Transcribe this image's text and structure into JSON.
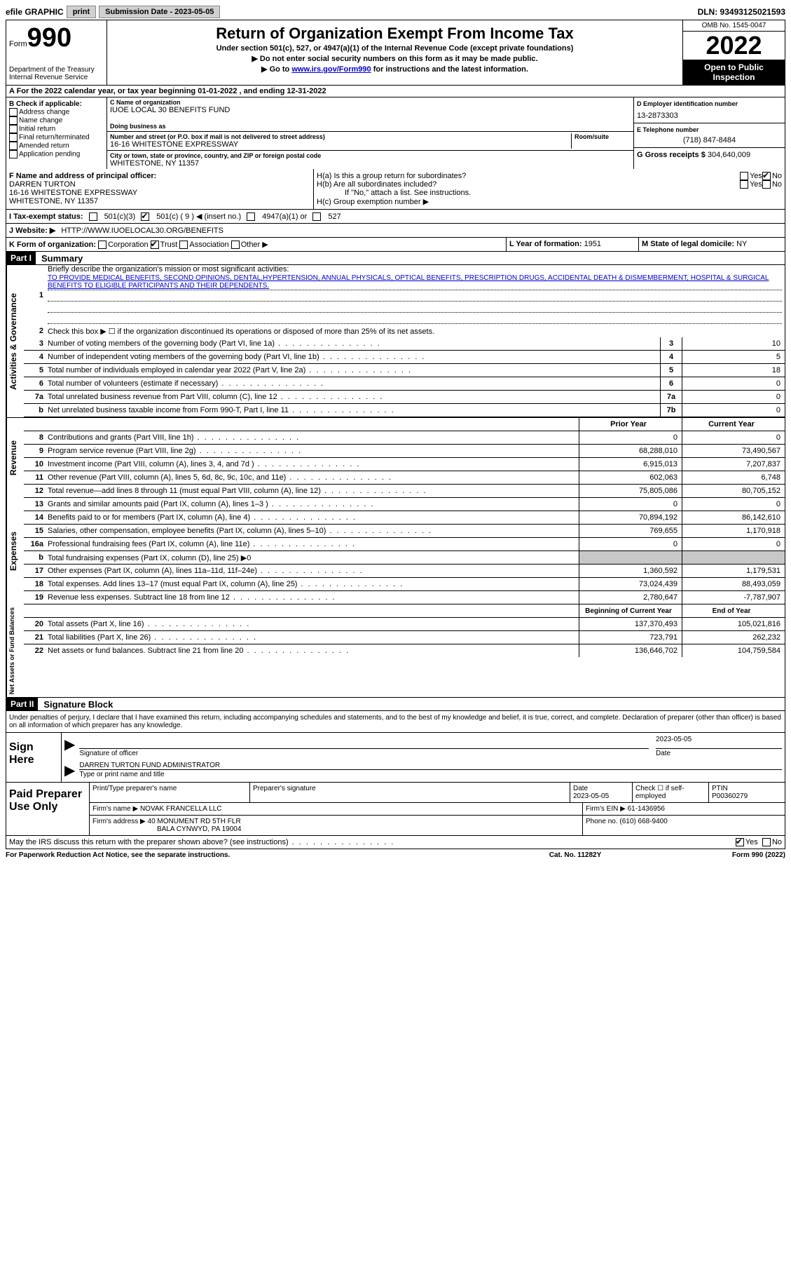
{
  "top": {
    "efile": "efile GRAPHIC",
    "print": "print",
    "submission_label": "Submission Date - 2023-05-05",
    "dln": "DLN: 93493125021593"
  },
  "header": {
    "form_word": "Form",
    "form_number": "990",
    "dept": "Department of the Treasury",
    "irs": "Internal Revenue Service",
    "title": "Return of Organization Exempt From Income Tax",
    "sub": "Under section 501(c), 527, or 4947(a)(1) of the Internal Revenue Code (except private foundations)",
    "line2": "▶ Do not enter social security numbers on this form as it may be made public.",
    "line3_pre": "▶ Go to ",
    "line3_link": "www.irs.gov/Form990",
    "line3_post": " for instructions and the latest information.",
    "omb": "OMB No. 1545-0047",
    "year": "2022",
    "inspection": "Open to Public Inspection"
  },
  "rowA": "A For the 2022 calendar year, or tax year beginning 01-01-2022   , and ending 12-31-2022",
  "b": {
    "label": "B Check if applicable:",
    "opts": [
      "Address change",
      "Name change",
      "Initial return",
      "Final return/terminated",
      "Amended return",
      "Application pending"
    ]
  },
  "c": {
    "name_label": "C Name of organization",
    "name": "IUOE LOCAL 30 BENEFITS FUND",
    "dba_label": "Doing business as",
    "street_label": "Number and street (or P.O. box if mail is not delivered to street address)",
    "room_label": "Room/suite",
    "street": "16-16 WHITESTONE EXPRESSWAY",
    "city_label": "City or town, state or province, country, and ZIP or foreign postal code",
    "city": "WHITESTONE, NY  11357"
  },
  "d": {
    "ein_label": "D Employer identification number",
    "ein": "13-2873303",
    "phone_label": "E Telephone number",
    "phone": "(718) 847-8484",
    "gross_label": "G Gross receipts $",
    "gross": "304,640,009"
  },
  "f": {
    "label": "F Name and address of principal officer:",
    "name": "DARREN TURTON",
    "street": "16-16 WHITESTONE EXPRESSWAY",
    "city": "WHITESTONE, NY  11357"
  },
  "h": {
    "a": "H(a)  Is this a group return for subordinates?",
    "b": "H(b)  Are all subordinates included?",
    "b_note": "If \"No,\" attach a list. See instructions.",
    "c": "H(c)  Group exemption number ▶",
    "yes": "Yes",
    "no": "No"
  },
  "i": {
    "label": "I   Tax-exempt status:",
    "o1": "501(c)(3)",
    "o2": "501(c) ( 9 ) ◀ (insert no.)",
    "o3": "4947(a)(1) or",
    "o4": "527"
  },
  "j": {
    "label": "J   Website: ▶",
    "url": "HTTP://WWW.IUOELOCAL30.ORG/BENEFITS"
  },
  "k": {
    "label": "K Form of organization:",
    "opts": [
      "Corporation",
      "Trust",
      "Association",
      "Other ▶"
    ],
    "l_label": "L Year of formation:",
    "l_val": "1951",
    "m_label": "M State of legal domicile:",
    "m_val": "NY"
  },
  "part1_header": "Part I",
  "part1_title": "Summary",
  "part2_header": "Part II",
  "part2_title": "Signature Block",
  "sideLabels": {
    "ag": "Activities & Governance",
    "rev": "Revenue",
    "exp": "Expenses",
    "net": "Net Assets or Fund Balances"
  },
  "summary": {
    "l1_label": "Briefly describe the organization's mission or most significant activities:",
    "l1_text": "TO PROVIDE MEDICAL BENEFITS, SECOND OPINIONS, DENTAL,HYPERTENSION, ANNUAL PHYSICALS, OPTICAL BENEFITS, PRESCRIPTION DRUGS, ACCIDENTAL DEATH & DISMEMBERMENT, HOSPITAL & SURGICAL BENEFITS TO ELIGIBLE PARTICIPANTS AND THEIR DEPENDENTS.",
    "l2": "Check this box ▶ ☐ if the organization discontinued its operations or disposed of more than 25% of its net assets.",
    "prior_hdr": "Prior Year",
    "current_hdr": "Current Year",
    "begin_hdr": "Beginning of Current Year",
    "end_hdr": "End of Year",
    "rows_single": [
      {
        "n": "3",
        "t": "Number of voting members of the governing body (Part VI, line 1a)",
        "box": "3",
        "v": "10"
      },
      {
        "n": "4",
        "t": "Number of independent voting members of the governing body (Part VI, line 1b)",
        "box": "4",
        "v": "5"
      },
      {
        "n": "5",
        "t": "Total number of individuals employed in calendar year 2022 (Part V, line 2a)",
        "box": "5",
        "v": "18"
      },
      {
        "n": "6",
        "t": "Total number of volunteers (estimate if necessary)",
        "box": "6",
        "v": "0"
      },
      {
        "n": "7a",
        "t": "Total unrelated business revenue from Part VIII, column (C), line 12",
        "box": "7a",
        "v": "0"
      },
      {
        "n": "b",
        "t": "Net unrelated business taxable income from Form 990-T, Part I, line 11",
        "box": "7b",
        "v": "0"
      }
    ],
    "rows_rev": [
      {
        "n": "8",
        "t": "Contributions and grants (Part VIII, line 1h)",
        "p": "0",
        "c": "0"
      },
      {
        "n": "9",
        "t": "Program service revenue (Part VIII, line 2g)",
        "p": "68,288,010",
        "c": "73,490,567"
      },
      {
        "n": "10",
        "t": "Investment income (Part VIII, column (A), lines 3, 4, and 7d )",
        "p": "6,915,013",
        "c": "7,207,837"
      },
      {
        "n": "11",
        "t": "Other revenue (Part VIII, column (A), lines 5, 6d, 8c, 9c, 10c, and 11e)",
        "p": "602,063",
        "c": "6,748"
      },
      {
        "n": "12",
        "t": "Total revenue—add lines 8 through 11 (must equal Part VIII, column (A), line 12)",
        "p": "75,805,086",
        "c": "80,705,152"
      }
    ],
    "rows_exp": [
      {
        "n": "13",
        "t": "Grants and similar amounts paid (Part IX, column (A), lines 1–3 )",
        "p": "0",
        "c": "0"
      },
      {
        "n": "14",
        "t": "Benefits paid to or for members (Part IX, column (A), line 4)",
        "p": "70,894,192",
        "c": "86,142,610"
      },
      {
        "n": "15",
        "t": "Salaries, other compensation, employee benefits (Part IX, column (A), lines 5–10)",
        "p": "769,655",
        "c": "1,170,918"
      },
      {
        "n": "16a",
        "t": "Professional fundraising fees (Part IX, column (A), line 11e)",
        "p": "0",
        "c": "0"
      },
      {
        "n": "b",
        "t": "Total fundraising expenses (Part IX, column (D), line 25) ▶0",
        "p": "",
        "c": "",
        "shaded": true
      },
      {
        "n": "17",
        "t": "Other expenses (Part IX, column (A), lines 11a–11d, 11f–24e)",
        "p": "1,360,592",
        "c": "1,179,531"
      },
      {
        "n": "18",
        "t": "Total expenses. Add lines 13–17 (must equal Part IX, column (A), line 25)",
        "p": "73,024,439",
        "c": "88,493,059"
      },
      {
        "n": "19",
        "t": "Revenue less expenses. Subtract line 18 from line 12",
        "p": "2,780,647",
        "c": "-7,787,907"
      }
    ],
    "rows_net": [
      {
        "n": "20",
        "t": "Total assets (Part X, line 16)",
        "p": "137,370,493",
        "c": "105,021,816"
      },
      {
        "n": "21",
        "t": "Total liabilities (Part X, line 26)",
        "p": "723,791",
        "c": "262,232"
      },
      {
        "n": "22",
        "t": "Net assets or fund balances. Subtract line 21 from line 20",
        "p": "136,646,702",
        "c": "104,759,584"
      }
    ]
  },
  "sig": {
    "penalties": "Under penalties of perjury, I declare that I have examined this return, including accompanying schedules and statements, and to the best of my knowledge and belief, it is true, correct, and complete. Declaration of preparer (other than officer) is based on all information of which preparer has any knowledge.",
    "sign_here": "Sign Here",
    "sig_officer": "Signature of officer",
    "date": "2023-05-05",
    "date_label": "Date",
    "name_title": "DARREN TURTON  FUND ADMINISTRATOR",
    "name_title_label": "Type or print name and title"
  },
  "paid": {
    "label": "Paid Preparer Use Only",
    "h1": "Print/Type preparer's name",
    "h2": "Preparer's signature",
    "h3": "Date",
    "h3v": "2023-05-05",
    "h4": "Check ☐ if self-employed",
    "h5": "PTIN",
    "h5v": "P00360279",
    "firm_name_label": "Firm's name    ▶",
    "firm_name": "NOVAK FRANCELLA LLC",
    "firm_ein_label": "Firm's EIN ▶",
    "firm_ein": "61-1436956",
    "firm_addr_label": "Firm's address ▶",
    "firm_addr1": "40 MONUMENT RD 5TH FLR",
    "firm_addr2": "BALA CYNWYD, PA  19004",
    "phone_label": "Phone no.",
    "phone": "(610) 668-9400"
  },
  "discuss": {
    "text": "May the IRS discuss this return with the preparer shown above? (see instructions)",
    "yes": "Yes",
    "no": "No"
  },
  "footer": {
    "left": "For Paperwork Reduction Act Notice, see the separate instructions.",
    "mid": "Cat. No. 11282Y",
    "right": "Form 990 (2022)"
  }
}
